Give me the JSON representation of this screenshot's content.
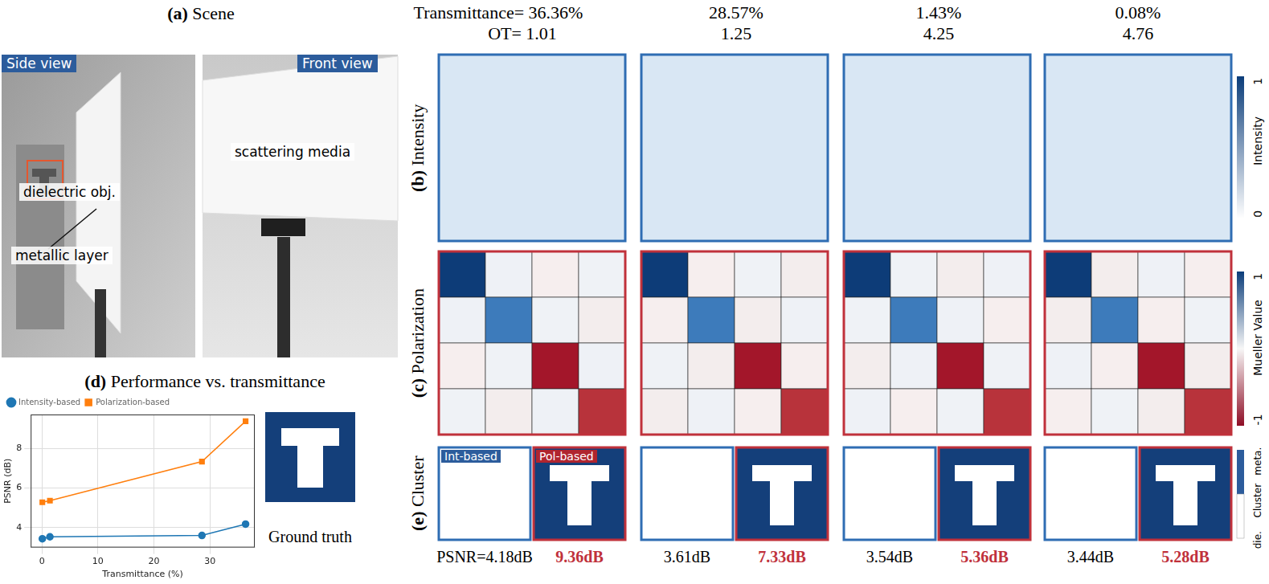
{
  "figure": {
    "scene": {
      "label": "(a)",
      "title": "Scene",
      "views": [
        "Side view",
        "Front view"
      ],
      "annotations": {
        "object": "dielectric obj.",
        "layer": "metallic layer",
        "media": "scattering media"
      }
    },
    "header": {
      "transmittance": [
        "Transmittance= 36.36%",
        "28.57%",
        "1.43%",
        "0.08%"
      ],
      "ot": [
        "OT= 1.01",
        "1.25",
        "4.25",
        "4.76"
      ]
    },
    "rows": [
      {
        "label": "(b)",
        "title": "Intensity",
        "colorbar": {
          "title": "Intensity",
          "ticks": [
            0,
            1
          ]
        }
      },
      {
        "label": "(c)",
        "title": "Polarization",
        "colorbar": {
          "title": "Mueller Value",
          "ticks": [
            -1,
            1
          ]
        }
      },
      {
        "label": "(e)",
        "title": "Cluster",
        "methods": [
          "Int-based",
          "Pol-based"
        ],
        "colorbar": {
          "title": "Cluster",
          "ticks": [
            "die.",
            "meta."
          ]
        }
      }
    ],
    "psnr": [
      {
        "int": "PSNR=4.18dB",
        "pol": "9.36dB"
      },
      {
        "int": "3.61dB",
        "pol": "7.33dB"
      },
      {
        "int": "3.54dB",
        "pol": "5.36dB"
      },
      {
        "int": "3.44dB",
        "pol": "5.28dB"
      }
    ],
    "performance": {
      "label": "(d)"
    },
    "ground_truth": "Ground truth"
  },
  "chart_data": {
    "type": "line",
    "title": "Performance vs. transmittance",
    "x_label": "Transmittance (%)",
    "y_label": "PSNR (dB)",
    "x": [
      0.08,
      1.43,
      28.57,
      36.36
    ],
    "series": [
      {
        "name": "Intensity-based",
        "color": "#1f77b4",
        "marker": "circle",
        "values": [
          3.44,
          3.54,
          3.61,
          4.18
        ]
      },
      {
        "name": "Polarization-based",
        "color": "#ff7f0e",
        "marker": "square",
        "values": [
          5.28,
          5.36,
          7.33,
          9.36
        ]
      }
    ],
    "xlim": [
      -2,
      38
    ],
    "xticks": [
      0,
      10,
      20,
      30
    ],
    "ylim": [
      3,
      9.7
    ],
    "yticks": [
      4,
      6,
      8
    ],
    "grid": true,
    "legend": "top"
  }
}
